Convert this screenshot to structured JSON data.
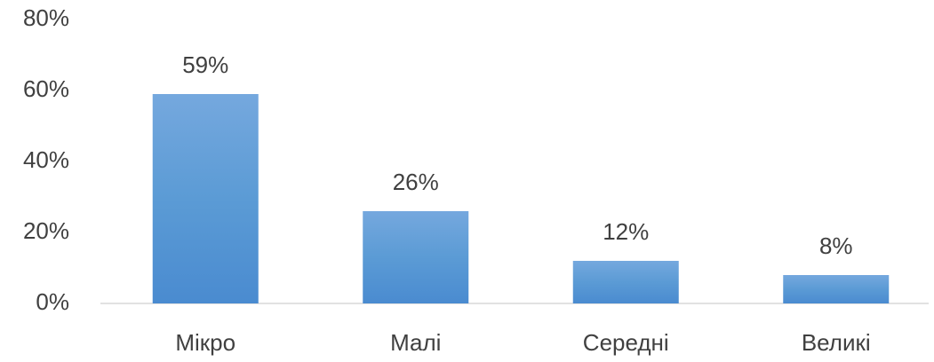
{
  "chart_data": {
    "type": "bar",
    "categories": [
      "Мікро",
      "Малі",
      "Середні",
      "Великі"
    ],
    "values": [
      59,
      26,
      12,
      8
    ],
    "value_labels": [
      "59%",
      "26%",
      "12%",
      "8%"
    ],
    "color": "#5b9bd5",
    "ylim": [
      0,
      80
    ],
    "yticks": [
      {
        "value": 0,
        "label": "0%"
      },
      {
        "value": 20,
        "label": "20%"
      },
      {
        "value": 40,
        "label": "40%"
      },
      {
        "value": 60,
        "label": "60%"
      },
      {
        "value": 80,
        "label": "80%"
      }
    ],
    "grid": false
  }
}
